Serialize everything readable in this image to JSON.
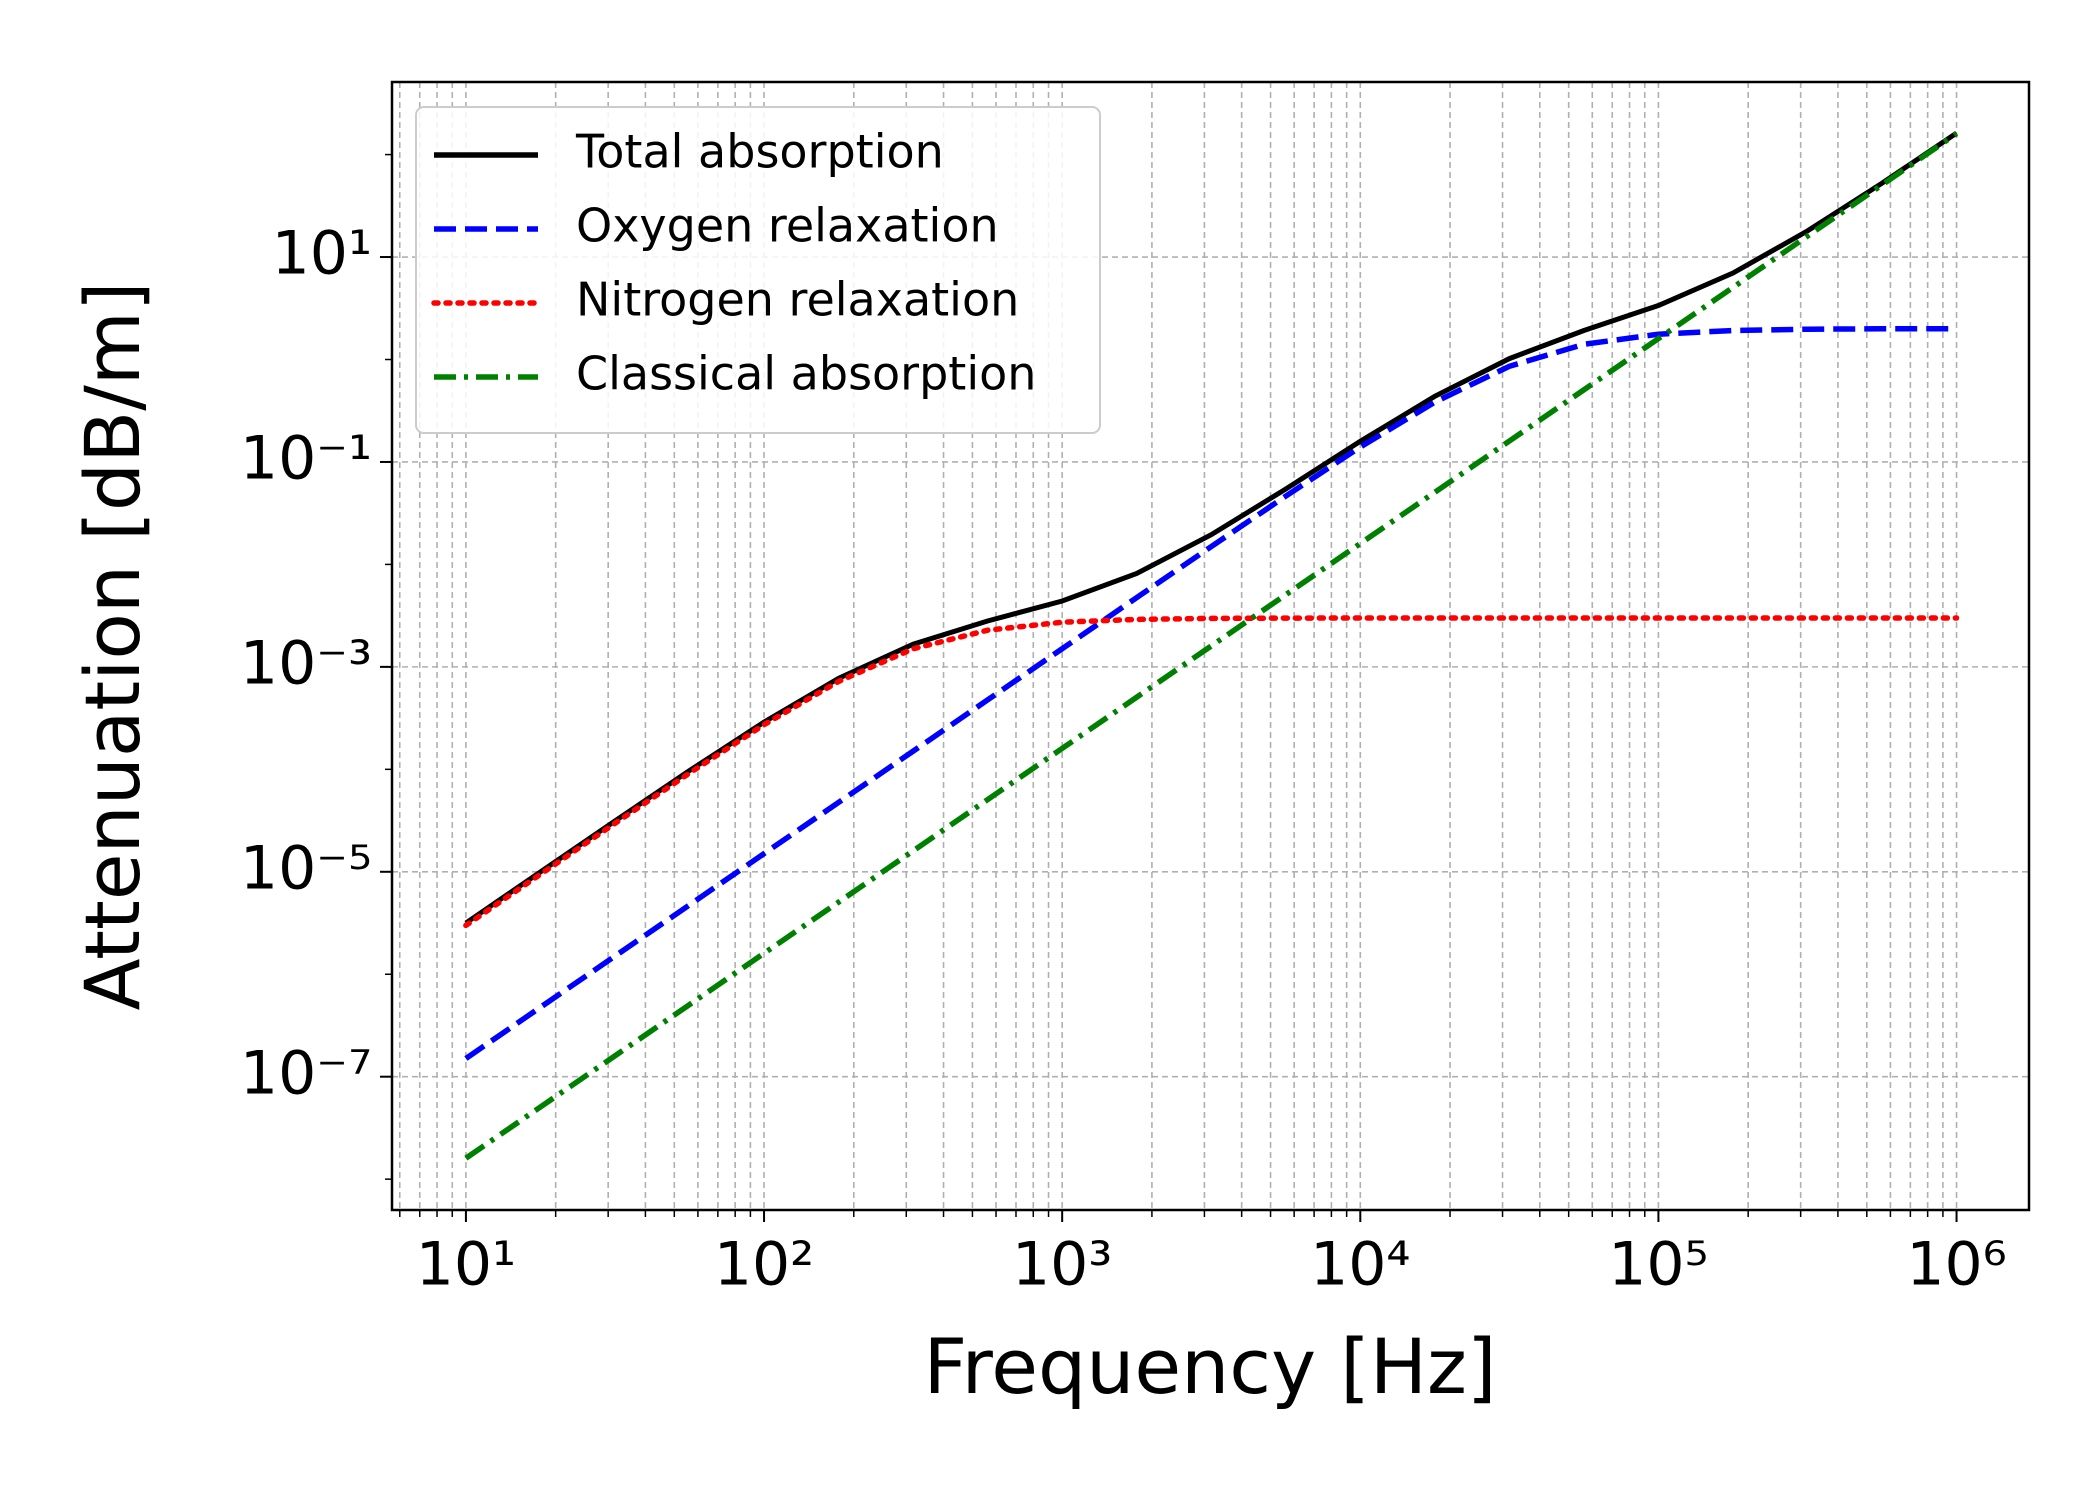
{
  "chart_data": {
    "type": "line",
    "xlabel": "Frequency [Hz]",
    "ylabel": "Attenuation [dB/m]",
    "xscale": "log",
    "yscale": "log",
    "grid": true,
    "legend": "upper left",
    "x": [
      10,
      17.78,
      31.62,
      56.23,
      100,
      177.8,
      316.2,
      562.3,
      1000,
      1778,
      3162,
      5623,
      10000,
      17783,
      31623,
      56234,
      100000,
      177828,
      316228,
      562341,
      1000000
    ],
    "series": [
      {
        "name": "Total absorption",
        "color": "#000000",
        "linestyle": "solid",
        "values": [
          3.163e-06,
          9.983e-06,
          3.136e-05,
          9.722e-05,
          0.0002893,
          0.0007734,
          0.001666,
          0.002805,
          0.004391,
          0.008158,
          0.0195,
          0.0545,
          0.1589,
          0.4378,
          1.021,
          1.917,
          3.368,
          6.982,
          17.98,
          52.6,
          162
        ]
      },
      {
        "name": "Oxygen relaxation",
        "color": "#0000ff",
        "linestyle": "dashed",
        "values": [
          1.504e-07,
          4.755e-07,
          1.504e-06,
          4.755e-06,
          1.504e-05,
          4.755e-05,
          0.0001504,
          0.0004755,
          0.001503,
          0.004744,
          0.01493,
          0.04645,
          0.1399,
          0.3842,
          0.8584,
          1.408,
          1.765,
          1.919,
          1.974,
          1.992,
          1.997
        ]
      },
      {
        "name": "Nitrogen relaxation",
        "color": "#ff0000",
        "linestyle": "dotted",
        "values": [
          2.997e-06,
          9.457e-06,
          2.97e-05,
          9.196e-05,
          0.0002727,
          0.0007208,
          0.0015,
          0.002279,
          0.002727,
          0.002908,
          0.00297,
          0.002991,
          0.002997,
          0.002999,
          0.003,
          0.003,
          0.003,
          0.003,
          0.003,
          0.003,
          0.003
        ]
      },
      {
        "name": "Classical absorption",
        "color": "#008000",
        "linestyle": "dashdot",
        "values": [
          1.6e-08,
          5.06e-08,
          1.6e-07,
          5.06e-07,
          1.6e-06,
          5.06e-06,
          1.6e-05,
          5.06e-05,
          0.00016,
          0.000506,
          0.0016,
          0.00506,
          0.016,
          0.0506,
          0.16,
          0.506,
          1.6,
          5.06,
          16,
          50.6,
          160
        ]
      }
    ],
    "xlim": [
      5.65,
      1750000
    ],
    "ylim": [
      5e-09,
      511
    ],
    "xticks": [
      {
        "value": 10,
        "label": "10¹"
      },
      {
        "value": 100,
        "label": "10²"
      },
      {
        "value": 1000,
        "label": "10³"
      },
      {
        "value": 10000,
        "label": "10⁴"
      },
      {
        "value": 100000,
        "label": "10⁵"
      },
      {
        "value": 1000000,
        "label": "10⁶"
      }
    ],
    "yticks": [
      {
        "value": 1e-07,
        "label": "10⁻⁷"
      },
      {
        "value": 1e-05,
        "label": "10⁻⁵"
      },
      {
        "value": 0.001,
        "label": "10⁻³"
      },
      {
        "value": 0.1,
        "label": "10⁻¹"
      },
      {
        "value": 10,
        "label": "10¹"
      }
    ]
  }
}
